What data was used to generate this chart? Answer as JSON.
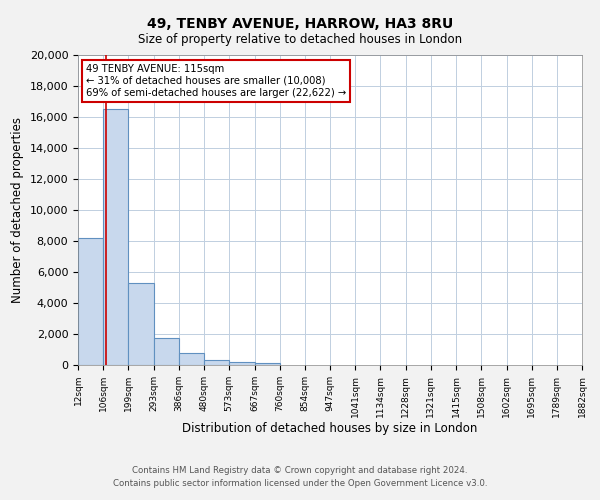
{
  "title": "49, TENBY AVENUE, HARROW, HA3 8RU",
  "subtitle": "Size of property relative to detached houses in London",
  "xlabel": "Distribution of detached houses by size in London",
  "ylabel": "Number of detached properties",
  "bin_labels": [
    "12sqm",
    "106sqm",
    "199sqm",
    "293sqm",
    "386sqm",
    "480sqm",
    "573sqm",
    "667sqm",
    "760sqm",
    "854sqm",
    "947sqm",
    "1041sqm",
    "1134sqm",
    "1228sqm",
    "1321sqm",
    "1415sqm",
    "1508sqm",
    "1602sqm",
    "1695sqm",
    "1789sqm",
    "1882sqm"
  ],
  "bar_values": [
    8200,
    16500,
    5300,
    1750,
    800,
    300,
    200,
    100,
    0,
    0,
    0,
    0,
    0,
    0,
    0,
    0,
    0,
    0,
    0,
    0
  ],
  "bar_color": "#c8d8ed",
  "bar_edgecolor": "#6090c0",
  "vline_color": "#cc0000",
  "annotation_box_edgecolor": "#cc0000",
  "annotation_box_facecolor": "#ffffff",
  "ylim": [
    0,
    20000
  ],
  "yticks": [
    0,
    2000,
    4000,
    6000,
    8000,
    10000,
    12000,
    14000,
    16000,
    18000,
    20000
  ],
  "footer_line1": "Contains HM Land Registry data © Crown copyright and database right 2024.",
  "footer_line2": "Contains public sector information licensed under the Open Government Licence v3.0.",
  "background_color": "#f2f2f2",
  "plot_bg_color": "#ffffff",
  "grid_color": "#c0cfe0"
}
